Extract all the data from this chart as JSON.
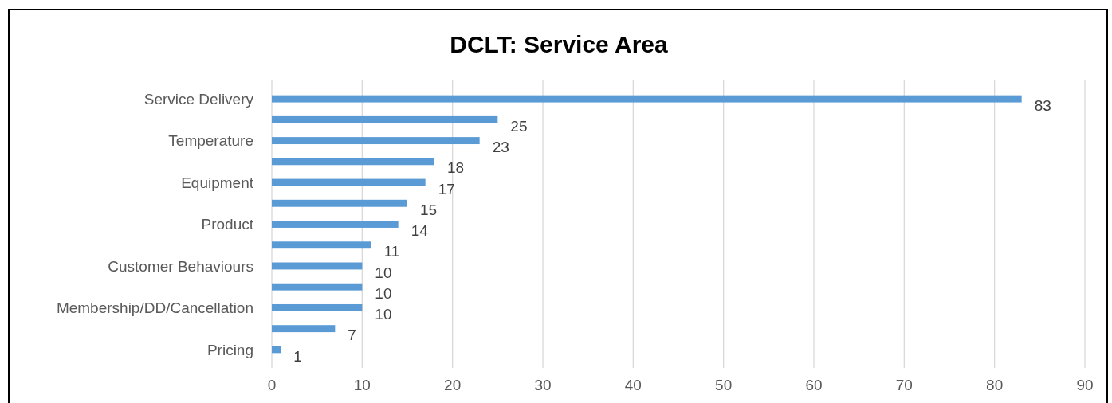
{
  "chart_data": {
    "type": "bar",
    "orientation": "horizontal",
    "title": "DCLT: Service Area",
    "categories": [
      "Service Delivery",
      null,
      "Temperature",
      null,
      "Equipment",
      null,
      "Product",
      null,
      "Customer Behaviours",
      null,
      "Membership/DD/Cancellation",
      null,
      "Pricing"
    ],
    "values": [
      83,
      25,
      23,
      18,
      17,
      15,
      14,
      11,
      10,
      10,
      10,
      7,
      1
    ],
    "color": "#5b9bd5",
    "data_labels": true,
    "xlim": [
      0,
      90
    ],
    "xticks": [
      0,
      10,
      20,
      30,
      40,
      50,
      60,
      70,
      80,
      90
    ],
    "grid": "x"
  }
}
